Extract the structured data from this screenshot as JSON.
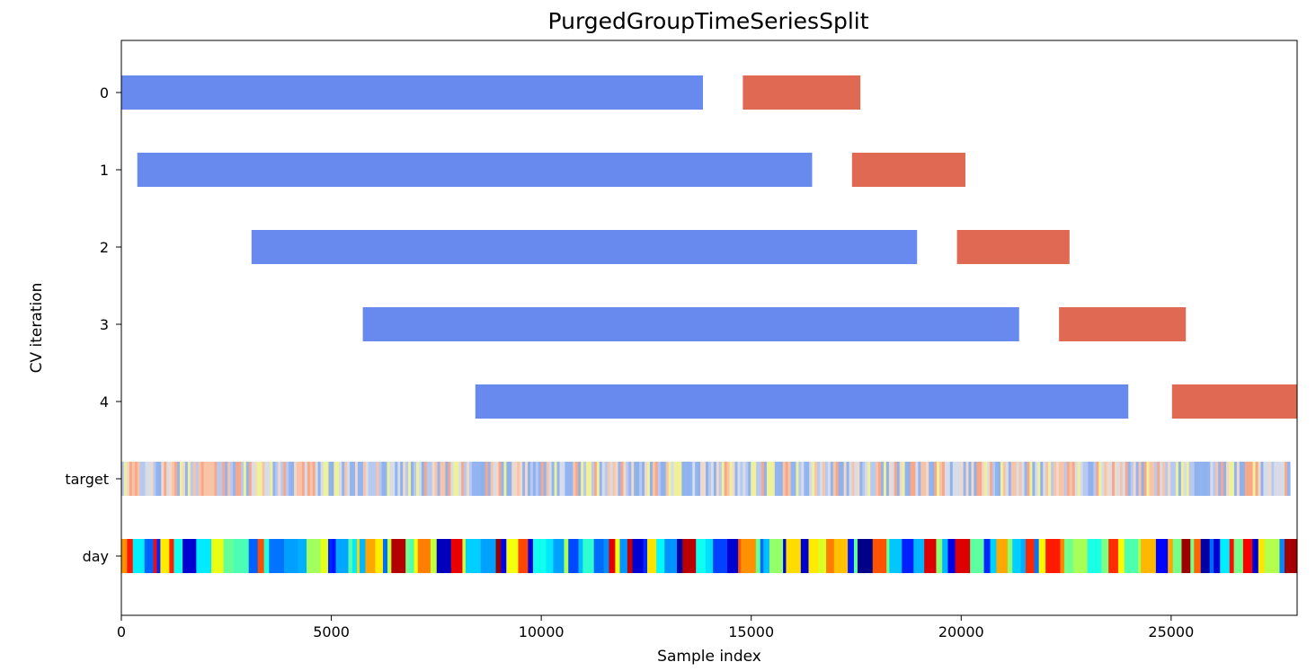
{
  "chart_data": {
    "type": "bar",
    "title": "PurgedGroupTimeSeriesSplit",
    "xlabel": "Sample index",
    "ylabel": "CV iteration",
    "xlim": [
      0,
      28000
    ],
    "x_ticks": [
      0,
      5000,
      10000,
      15000,
      20000,
      25000
    ],
    "x_tick_labels": [
      "0",
      "5000",
      "10000",
      "15000",
      "20000",
      "25000"
    ],
    "row_labels": [
      "0",
      "1",
      "2",
      "3",
      "4",
      "target",
      "day"
    ],
    "train_color": "#6889ee",
    "test_color": "#e06953",
    "splits": [
      {
        "label": "0",
        "train": [
          0,
          13850
        ],
        "test": [
          14800,
          17600
        ]
      },
      {
        "label": "1",
        "train": [
          380,
          16450
        ],
        "test": [
          17400,
          20100
        ]
      },
      {
        "label": "2",
        "train": [
          3100,
          18950
        ],
        "test": [
          19900,
          22580
        ]
      },
      {
        "label": "3",
        "train": [
          5750,
          21380
        ],
        "test": [
          22330,
          25350
        ]
      },
      {
        "label": "4",
        "train": [
          8430,
          23980
        ],
        "test": [
          25020,
          28000
        ]
      }
    ],
    "target_row": {
      "label": "target",
      "palette": [
        "#92b4f2",
        "#b7c9f0",
        "#f7a889",
        "#f0d9c8",
        "#d6dde8",
        "#f8c4a8",
        "#eef09a",
        "#8fb1ec"
      ],
      "bins": 440,
      "seed": 17
    },
    "day_row": {
      "label": "day",
      "colormap": "jet",
      "bins": 150,
      "seed": 5
    }
  }
}
